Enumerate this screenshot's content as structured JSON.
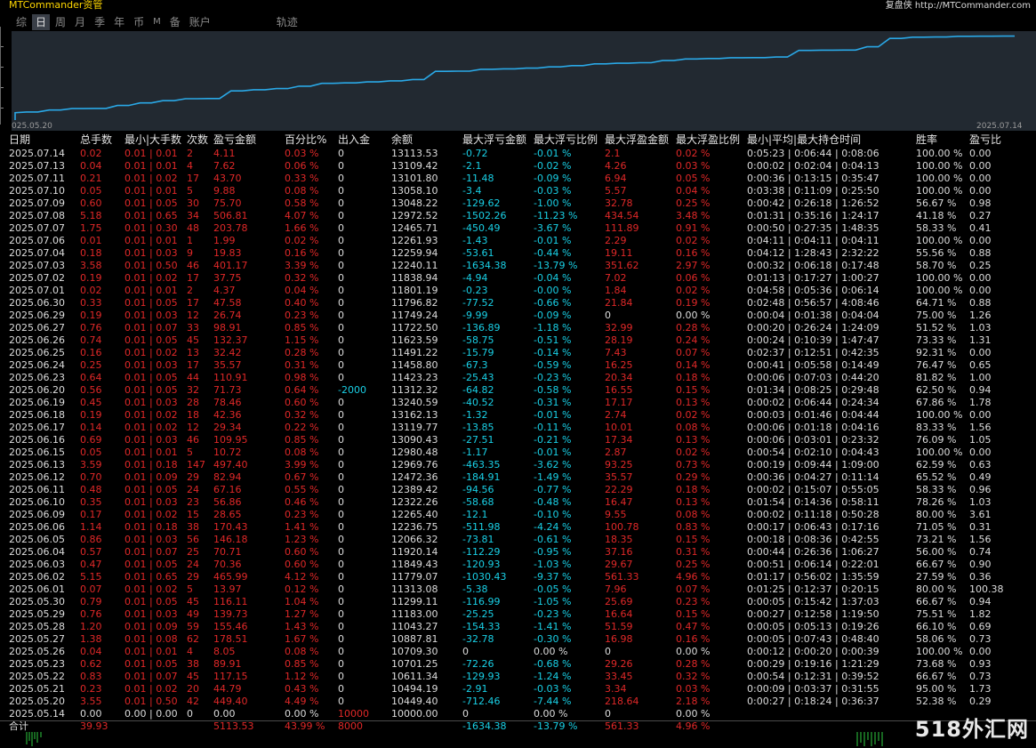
{
  "app_title": "MTCommander资管",
  "credit": "复盘侠 http://MTCommander.com",
  "tabs": [
    {
      "label": "综",
      "active": false
    },
    {
      "label": "日",
      "active": true
    },
    {
      "label": "周",
      "active": false
    },
    {
      "label": "月",
      "active": false
    },
    {
      "label": "季",
      "active": false
    },
    {
      "label": "年",
      "active": false
    },
    {
      "label": "币",
      "active": false
    },
    {
      "label": "M",
      "active": false
    },
    {
      "label": "备",
      "active": false
    },
    {
      "label": "账户",
      "active": false
    },
    {
      "label": "轨迹",
      "active": false
    }
  ],
  "equity_chart": {
    "type": "line",
    "start_label": "025.05.20",
    "end_label": "2025.07.14",
    "line_color": "#2aa8e6",
    "background": "#222931",
    "x": [
      "2025.05.20",
      "2025.05.21",
      "2025.05.22",
      "2025.05.23",
      "2025.05.26",
      "2025.05.27",
      "2025.05.28",
      "2025.05.29",
      "2025.05.30",
      "2025.06.01",
      "2025.06.02",
      "2025.06.03",
      "2025.06.04",
      "2025.06.05",
      "2025.06.06",
      "2025.06.09",
      "2025.06.10",
      "2025.06.11",
      "2025.06.12",
      "2025.06.13",
      "2025.06.15",
      "2025.06.16",
      "2025.06.17",
      "2025.06.18",
      "2025.06.19",
      "2025.06.20",
      "2025.06.23",
      "2025.06.24",
      "2025.06.25",
      "2025.06.26",
      "2025.06.27",
      "2025.06.29",
      "2025.06.30",
      "2025.07.01",
      "2025.07.02",
      "2025.07.03",
      "2025.07.04",
      "2025.07.06",
      "2025.07.07",
      "2025.07.08",
      "2025.07.09",
      "2025.07.10",
      "2025.07.11",
      "2025.07.13",
      "2025.07.14"
    ],
    "y": [
      10449.4,
      10494.19,
      10611.34,
      10701.25,
      10709.3,
      10887.81,
      11043.27,
      11183.0,
      11299.11,
      11313.08,
      11779.07,
      11849.43,
      11920.14,
      12066.32,
      12236.75,
      12265.4,
      12322.26,
      12389.42,
      12472.36,
      12969.76,
      12980.48,
      13090.43,
      13119.77,
      13162.13,
      13240.59,
      11312.32,
      11423.23,
      11458.8,
      11491.22,
      11623.59,
      11722.5,
      11749.24,
      11796.82,
      11801.19,
      11838.94,
      12240.11,
      12259.94,
      12261.93,
      12465.71,
      12972.52,
      13048.22,
      13058.1,
      13101.8,
      13109.42,
      13113.53
    ],
    "profit_curve": [
      449.4,
      494.19,
      611.34,
      701.25,
      709.3,
      887.81,
      1043.27,
      1183.0,
      1299.11,
      1313.08,
      1779.07,
      1849.43,
      1920.14,
      2066.32,
      2236.75,
      2265.4,
      2322.26,
      2389.42,
      2472.36,
      2969.76,
      2980.48,
      3090.43,
      3119.77,
      3162.13,
      3240.59,
      3312.32,
      3423.23,
      3458.8,
      3491.22,
      3623.59,
      3722.5,
      3749.24,
      3796.82,
      3801.19,
      3838.94,
      4240.11,
      4259.94,
      4261.93,
      4465.71,
      4972.52,
      5048.22,
      5058.1,
      5101.8,
      5109.42,
      5113.53
    ],
    "ylim": [
      0,
      5200
    ]
  },
  "columns": [
    "日期",
    "总手数",
    "最小|大手数",
    "次数",
    "盈亏金额",
    "百分比%",
    "出入金",
    "余额",
    "最大浮亏金额",
    "最大浮亏比例",
    "最大浮盈金额",
    "最大浮盈比例",
    "最小|平均|最大持仓时间",
    "胜率",
    "盈亏比"
  ],
  "rows": [
    [
      "2025.07.14",
      "0.02",
      "0.01 | 0.01",
      "2",
      "4.11",
      "0.03 %",
      "0",
      "13113.53",
      "-0.72",
      "-0.01 %",
      "2.1",
      "0.02 %",
      "0:05:23 | 0:06:44 | 0:08:06",
      "100.00 %",
      "0.00"
    ],
    [
      "2025.07.13",
      "0.04",
      "0.01 | 0.01",
      "4",
      "7.62",
      "0.06 %",
      "0",
      "13109.42",
      "-2.1",
      "-0.02 %",
      "4.26",
      "0.03 %",
      "0:00:02 | 0:02:04 | 0:04:13",
      "100.00 %",
      "0.00"
    ],
    [
      "2025.07.11",
      "0.21",
      "0.01 | 0.02",
      "17",
      "43.70",
      "0.33 %",
      "0",
      "13101.80",
      "-11.48",
      "-0.09 %",
      "6.94",
      "0.05 %",
      "0:00:36 | 0:13:15 | 0:35:47",
      "100.00 %",
      "0.00"
    ],
    [
      "2025.07.10",
      "0.05",
      "0.01 | 0.01",
      "5",
      "9.88",
      "0.08 %",
      "0",
      "13058.10",
      "-3.4",
      "-0.03 %",
      "5.57",
      "0.04 %",
      "0:03:38 | 0:11:09 | 0:25:50",
      "100.00 %",
      "0.00"
    ],
    [
      "2025.07.09",
      "0.60",
      "0.01 | 0.05",
      "30",
      "75.70",
      "0.58 %",
      "0",
      "13048.22",
      "-129.62",
      "-1.00 %",
      "32.78",
      "0.25 %",
      "0:00:42 | 0:26:18 | 1:26:52",
      "56.67 %",
      "0.98"
    ],
    [
      "2025.07.08",
      "5.18",
      "0.01 | 0.65",
      "34",
      "506.81",
      "4.07 %",
      "0",
      "12972.52",
      "-1502.26",
      "-11.23 %",
      "434.54",
      "3.48 %",
      "0:01:31 | 0:35:16 | 1:24:17",
      "41.18 %",
      "0.27"
    ],
    [
      "2025.07.07",
      "1.75",
      "0.01 | 0.30",
      "48",
      "203.78",
      "1.66 %",
      "0",
      "12465.71",
      "-450.49",
      "-3.67 %",
      "111.89",
      "0.91 %",
      "0:00:50 | 0:27:35 | 1:48:35",
      "58.33 %",
      "0.41"
    ],
    [
      "2025.07.06",
      "0.01",
      "0.01 | 0.01",
      "1",
      "1.99",
      "0.02 %",
      "0",
      "12261.93",
      "-1.43",
      "-0.01 %",
      "2.29",
      "0.02 %",
      "0:04:11 | 0:04:11 | 0:04:11",
      "100.00 %",
      "0.00"
    ],
    [
      "2025.07.04",
      "0.18",
      "0.01 | 0.03",
      "9",
      "19.83",
      "0.16 %",
      "0",
      "12259.94",
      "-53.61",
      "-0.44 %",
      "19.11",
      "0.16 %",
      "0:04:12 | 1:28:43 | 2:32:22",
      "55.56 %",
      "0.88"
    ],
    [
      "2025.07.03",
      "3.58",
      "0.01 | 0.50",
      "46",
      "401.17",
      "3.39 %",
      "0",
      "12240.11",
      "-1634.38",
      "-13.79 %",
      "351.62",
      "2.97 %",
      "0:00:32 | 0:06:18 | 0:17:48",
      "58.70 %",
      "0.25"
    ],
    [
      "2025.07.02",
      "0.19",
      "0.01 | 0.02",
      "17",
      "37.75",
      "0.32 %",
      "0",
      "11838.94",
      "-4.94",
      "-0.04 %",
      "7.02",
      "0.06 %",
      "0:01:13 | 0:17:27 | 1:00:27",
      "100.00 %",
      "0.00"
    ],
    [
      "2025.07.01",
      "0.02",
      "0.01 | 0.01",
      "2",
      "4.37",
      "0.04 %",
      "0",
      "11801.19",
      "-0.23",
      "-0.00 %",
      "1.84",
      "0.02 %",
      "0:04:58 | 0:05:36 | 0:06:14",
      "100.00 %",
      "0.00"
    ],
    [
      "2025.06.30",
      "0.33",
      "0.01 | 0.05",
      "17",
      "47.58",
      "0.40 %",
      "0",
      "11796.82",
      "-77.52",
      "-0.66 %",
      "21.84",
      "0.19 %",
      "0:02:48 | 0:56:57 | 4:08:46",
      "64.71 %",
      "0.88"
    ],
    [
      "2025.06.29",
      "0.19",
      "0.01 | 0.03",
      "12",
      "26.74",
      "0.23 %",
      "0",
      "11749.24",
      "-9.99",
      "-0.09 %",
      "0",
      "0.00 %",
      "0:00:04 | 0:01:38 | 0:04:04",
      "75.00 %",
      "1.26"
    ],
    [
      "2025.06.27",
      "0.76",
      "0.01 | 0.07",
      "33",
      "98.91",
      "0.85 %",
      "0",
      "11722.50",
      "-136.89",
      "-1.18 %",
      "32.99",
      "0.28 %",
      "0:00:20 | 0:26:24 | 1:24:09",
      "51.52 %",
      "1.03"
    ],
    [
      "2025.06.26",
      "0.74",
      "0.01 | 0.05",
      "45",
      "132.37",
      "1.15 %",
      "0",
      "11623.59",
      "-58.75",
      "-0.51 %",
      "28.19",
      "0.24 %",
      "0:00:24 | 0:10:39 | 1:47:47",
      "73.33 %",
      "1.31"
    ],
    [
      "2025.06.25",
      "0.16",
      "0.01 | 0.02",
      "13",
      "32.42",
      "0.28 %",
      "0",
      "11491.22",
      "-15.79",
      "-0.14 %",
      "7.43",
      "0.07 %",
      "0:02:37 | 0:12:51 | 0:42:35",
      "92.31 %",
      "0.00"
    ],
    [
      "2025.06.24",
      "0.25",
      "0.01 | 0.03",
      "17",
      "35.57",
      "0.31 %",
      "0",
      "11458.80",
      "-67.3",
      "-0.59 %",
      "16.25",
      "0.14 %",
      "0:00:41 | 0:05:58 | 0:14:49",
      "76.47 %",
      "0.65"
    ],
    [
      "2025.06.23",
      "0.64",
      "0.01 | 0.05",
      "44",
      "110.91",
      "0.98 %",
      "0",
      "11423.23",
      "-25.43",
      "-0.23 %",
      "20.34",
      "0.18 %",
      "0:00:06 | 0:07:03 | 0:44:20",
      "81.82 %",
      "1.00"
    ],
    [
      "2025.06.20",
      "0.56",
      "0.01 | 0.05",
      "32",
      "71.73",
      "0.64 %",
      "-2000",
      "11312.32",
      "-64.82",
      "-0.58 %",
      "16.55",
      "0.15 %",
      "0:01:34 | 0:08:25 | 0:29:48",
      "62.50 %",
      "0.94"
    ],
    [
      "2025.06.19",
      "0.45",
      "0.01 | 0.03",
      "28",
      "78.46",
      "0.60 %",
      "0",
      "13240.59",
      "-40.52",
      "-0.31 %",
      "17.17",
      "0.13 %",
      "0:00:02 | 0:06:44 | 0:24:34",
      "67.86 %",
      "1.78"
    ],
    [
      "2025.06.18",
      "0.19",
      "0.01 | 0.02",
      "18",
      "42.36",
      "0.32 %",
      "0",
      "13162.13",
      "-1.32",
      "-0.01 %",
      "2.74",
      "0.02 %",
      "0:00:03 | 0:01:46 | 0:04:44",
      "100.00 %",
      "0.00"
    ],
    [
      "2025.06.17",
      "0.14",
      "0.01 | 0.02",
      "12",
      "29.34",
      "0.22 %",
      "0",
      "13119.77",
      "-13.85",
      "-0.11 %",
      "10.01",
      "0.08 %",
      "0:00:06 | 0:01:18 | 0:04:16",
      "83.33 %",
      "1.56"
    ],
    [
      "2025.06.16",
      "0.69",
      "0.01 | 0.03",
      "46",
      "109.95",
      "0.85 %",
      "0",
      "13090.43",
      "-27.51",
      "-0.21 %",
      "17.34",
      "0.13 %",
      "0:00:06 | 0:03:01 | 0:23:32",
      "76.09 %",
      "1.05"
    ],
    [
      "2025.06.15",
      "0.05",
      "0.01 | 0.01",
      "5",
      "10.72",
      "0.08 %",
      "0",
      "12980.48",
      "-1.17",
      "-0.01 %",
      "2.87",
      "0.02 %",
      "0:00:54 | 0:02:10 | 0:04:43",
      "100.00 %",
      "0.00"
    ],
    [
      "2025.06.13",
      "3.59",
      "0.01 | 0.18",
      "147",
      "497.40",
      "3.99 %",
      "0",
      "12969.76",
      "-463.35",
      "-3.62 %",
      "93.25",
      "0.73 %",
      "0:00:19 | 0:09:44 | 1:09:00",
      "62.59 %",
      "0.63"
    ],
    [
      "2025.06.12",
      "0.70",
      "0.01 | 0.09",
      "29",
      "82.94",
      "0.67 %",
      "0",
      "12472.36",
      "-184.91",
      "-1.49 %",
      "35.57",
      "0.29 %",
      "0:00:36 | 0:04:27 | 0:11:14",
      "65.52 %",
      "0.49"
    ],
    [
      "2025.06.11",
      "0.48",
      "0.01 | 0.05",
      "24",
      "67.16",
      "0.55 %",
      "0",
      "12389.42",
      "-94.56",
      "-0.77 %",
      "22.29",
      "0.18 %",
      "0:00:02 | 0:15:07 | 0:55:05",
      "58.33 %",
      "0.96"
    ],
    [
      "2025.06.10",
      "0.35",
      "0.01 | 0.03",
      "23",
      "56.86",
      "0.46 %",
      "0",
      "12322.26",
      "-58.68",
      "-0.48 %",
      "16.47",
      "0.13 %",
      "0:01:54 | 0:14:36 | 0:58:11",
      "78.26 %",
      "1.03"
    ],
    [
      "2025.06.09",
      "0.17",
      "0.01 | 0.02",
      "15",
      "28.65",
      "0.23 %",
      "0",
      "12265.40",
      "-12.1",
      "-0.10 %",
      "9.55",
      "0.08 %",
      "0:00:02 | 0:11:18 | 0:50:28",
      "80.00 %",
      "3.61"
    ],
    [
      "2025.06.06",
      "1.14",
      "0.01 | 0.18",
      "38",
      "170.43",
      "1.41 %",
      "0",
      "12236.75",
      "-511.98",
      "-4.24 %",
      "100.78",
      "0.83 %",
      "0:00:17 | 0:06:43 | 0:17:16",
      "71.05 %",
      "0.31"
    ],
    [
      "2025.06.05",
      "0.86",
      "0.01 | 0.03",
      "56",
      "146.18",
      "1.23 %",
      "0",
      "12066.32",
      "-73.81",
      "-0.61 %",
      "18.35",
      "0.15 %",
      "0:00:18 | 0:08:36 | 0:42:55",
      "73.21 %",
      "1.56"
    ],
    [
      "2025.06.04",
      "0.57",
      "0.01 | 0.07",
      "25",
      "70.71",
      "0.60 %",
      "0",
      "11920.14",
      "-112.29",
      "-0.95 %",
      "37.16",
      "0.31 %",
      "0:00:44 | 0:26:36 | 1:06:27",
      "56.00 %",
      "0.74"
    ],
    [
      "2025.06.03",
      "0.47",
      "0.01 | 0.05",
      "24",
      "70.36",
      "0.60 %",
      "0",
      "11849.43",
      "-120.93",
      "-1.03 %",
      "29.67",
      "0.25 %",
      "0:00:51 | 0:06:14 | 0:22:01",
      "66.67 %",
      "0.90"
    ],
    [
      "2025.06.02",
      "5.15",
      "0.01 | 0.65",
      "29",
      "465.99",
      "4.12 %",
      "0",
      "11779.07",
      "-1030.43",
      "-9.37 %",
      "561.33",
      "4.96 %",
      "0:01:17 | 0:56:02 | 1:35:59",
      "27.59 %",
      "0.36"
    ],
    [
      "2025.06.01",
      "0.07",
      "0.01 | 0.02",
      "5",
      "13.97",
      "0.12 %",
      "0",
      "11313.08",
      "-5.38",
      "-0.05 %",
      "7.96",
      "0.07 %",
      "0:01:25 | 0:12:37 | 0:20:15",
      "80.00 %",
      "100.38"
    ],
    [
      "2025.05.30",
      "0.79",
      "0.01 | 0.05",
      "45",
      "116.11",
      "1.04 %",
      "0",
      "11299.11",
      "-116.99",
      "-1.05 %",
      "25.69",
      "0.23 %",
      "0:00:05 | 0:15:42 | 1:37:03",
      "66.67 %",
      "0.94"
    ],
    [
      "2025.05.29",
      "0.76",
      "0.01 | 0.03",
      "49",
      "139.73",
      "1.27 %",
      "0",
      "11183.00",
      "-25.25",
      "-0.23 %",
      "16.64",
      "0.15 %",
      "0:00:27 | 0:12:58 | 1:19:50",
      "75.51 %",
      "1.82"
    ],
    [
      "2025.05.28",
      "1.20",
      "0.01 | 0.09",
      "59",
      "155.46",
      "1.43 %",
      "0",
      "11043.27",
      "-154.33",
      "-1.41 %",
      "51.59",
      "0.47 %",
      "0:00:05 | 0:05:13 | 0:19:26",
      "66.10 %",
      "0.69"
    ],
    [
      "2025.05.27",
      "1.38",
      "0.01 | 0.08",
      "62",
      "178.51",
      "1.67 %",
      "0",
      "10887.81",
      "-32.78",
      "-0.30 %",
      "16.98",
      "0.16 %",
      "0:00:05 | 0:07:43 | 0:48:40",
      "58.06 %",
      "0.73"
    ],
    [
      "2025.05.26",
      "0.04",
      "0.01 | 0.01",
      "4",
      "8.05",
      "0.08 %",
      "0",
      "10709.30",
      "0",
      "0.00 %",
      "0",
      "0.00 %",
      "0:00:12 | 0:00:20 | 0:00:39",
      "100.00 %",
      "0.00"
    ],
    [
      "2025.05.23",
      "0.62",
      "0.01 | 0.05",
      "38",
      "89.91",
      "0.85 %",
      "0",
      "10701.25",
      "-72.26",
      "-0.68 %",
      "29.26",
      "0.28 %",
      "0:00:29 | 0:19:16 | 1:21:29",
      "73.68 %",
      "0.93"
    ],
    [
      "2025.05.22",
      "0.83",
      "0.01 | 0.07",
      "45",
      "117.15",
      "1.12 %",
      "0",
      "10611.34",
      "-129.93",
      "-1.24 %",
      "33.45",
      "0.32 %",
      "0:00:54 | 0:12:31 | 0:39:52",
      "66.67 %",
      "0.73"
    ],
    [
      "2025.05.21",
      "0.23",
      "0.01 | 0.02",
      "20",
      "44.79",
      "0.43 %",
      "0",
      "10494.19",
      "-2.91",
      "-0.03 %",
      "3.34",
      "0.03 %",
      "0:00:09 | 0:03:37 | 0:31:55",
      "95.00 %",
      "1.73"
    ],
    [
      "2025.05.20",
      "3.55",
      "0.01 | 0.50",
      "42",
      "449.40",
      "4.49 %",
      "0",
      "10449.40",
      "-712.46",
      "-7.44 %",
      "218.64",
      "2.18 %",
      "0:00:27 | 0:18:24 | 0:36:37",
      "52.38 %",
      "0.29"
    ],
    [
      "2025.05.14",
      "0.00",
      "0.00 | 0.00",
      "0",
      "0.00",
      "0.00 %",
      "10000",
      "10000.00",
      "0",
      "0.00 %",
      "0",
      "0.00 %",
      "",
      "",
      ""
    ]
  ],
  "totals": [
    "合计",
    "39.93",
    "",
    "",
    "5113.53",
    "43.99 %",
    "8000",
    "",
    "-1634.38",
    "-13.79 %",
    "561.33",
    "4.96 %",
    "",
    "",
    ""
  ],
  "watermark": "518外汇网"
}
